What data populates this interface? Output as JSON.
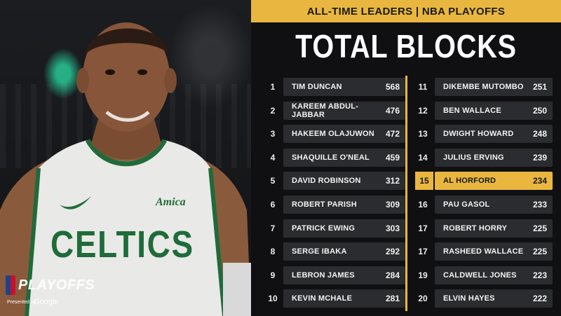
{
  "header": {
    "band_title": "ALL-TIME LEADERS | NBA PLAYOFFS",
    "title": "TOTAL BLOCKS"
  },
  "branding": {
    "playoffs": "PLAYOFFS",
    "presented": "Presented by",
    "sponsor": "Google"
  },
  "jersey": {
    "team": "CELTICS",
    "sponsor": "Amica"
  },
  "colors": {
    "accent": "#e9b73f",
    "row_bg": "#2a2c2f",
    "celtics_green": "#1f6b3a"
  },
  "leaders_left": [
    {
      "rank": "1",
      "name": "TIM DUNCAN",
      "value": "568"
    },
    {
      "rank": "2",
      "name": "KAREEM ABDUL-JABBAR",
      "value": "476"
    },
    {
      "rank": "3",
      "name": "HAKEEM OLAJUWON",
      "value": "472"
    },
    {
      "rank": "4",
      "name": "SHAQUILLE O'NEAL",
      "value": "459"
    },
    {
      "rank": "5",
      "name": "DAVID ROBINSON",
      "value": "312"
    },
    {
      "rank": "6",
      "name": "ROBERT PARISH",
      "value": "309"
    },
    {
      "rank": "7",
      "name": "PATRICK EWING",
      "value": "303"
    },
    {
      "rank": "8",
      "name": "SERGE IBAKA",
      "value": "292"
    },
    {
      "rank": "9",
      "name": "LEBRON JAMES",
      "value": "284"
    },
    {
      "rank": "10",
      "name": "KEVIN MCHALE",
      "value": "281"
    }
  ],
  "leaders_right": [
    {
      "rank": "11",
      "name": "DIKEMBE MUTOMBO",
      "value": "251"
    },
    {
      "rank": "12",
      "name": "BEN WALLACE",
      "value": "250"
    },
    {
      "rank": "13",
      "name": "DWIGHT HOWARD",
      "value": "248"
    },
    {
      "rank": "14",
      "name": "JULIUS ERVING",
      "value": "239"
    },
    {
      "rank": "15",
      "name": "AL HORFORD",
      "value": "234",
      "highlight": true
    },
    {
      "rank": "16",
      "name": "PAU GASOL",
      "value": "233"
    },
    {
      "rank": "17",
      "name": "ROBERT HORRY",
      "value": "225"
    },
    {
      "rank": "17",
      "name": "RASHEED WALLACE",
      "value": "225"
    },
    {
      "rank": "19",
      "name": "CALDWELL JONES",
      "value": "223"
    },
    {
      "rank": "20",
      "name": "ELVIN HAYES",
      "value": "222"
    }
  ]
}
